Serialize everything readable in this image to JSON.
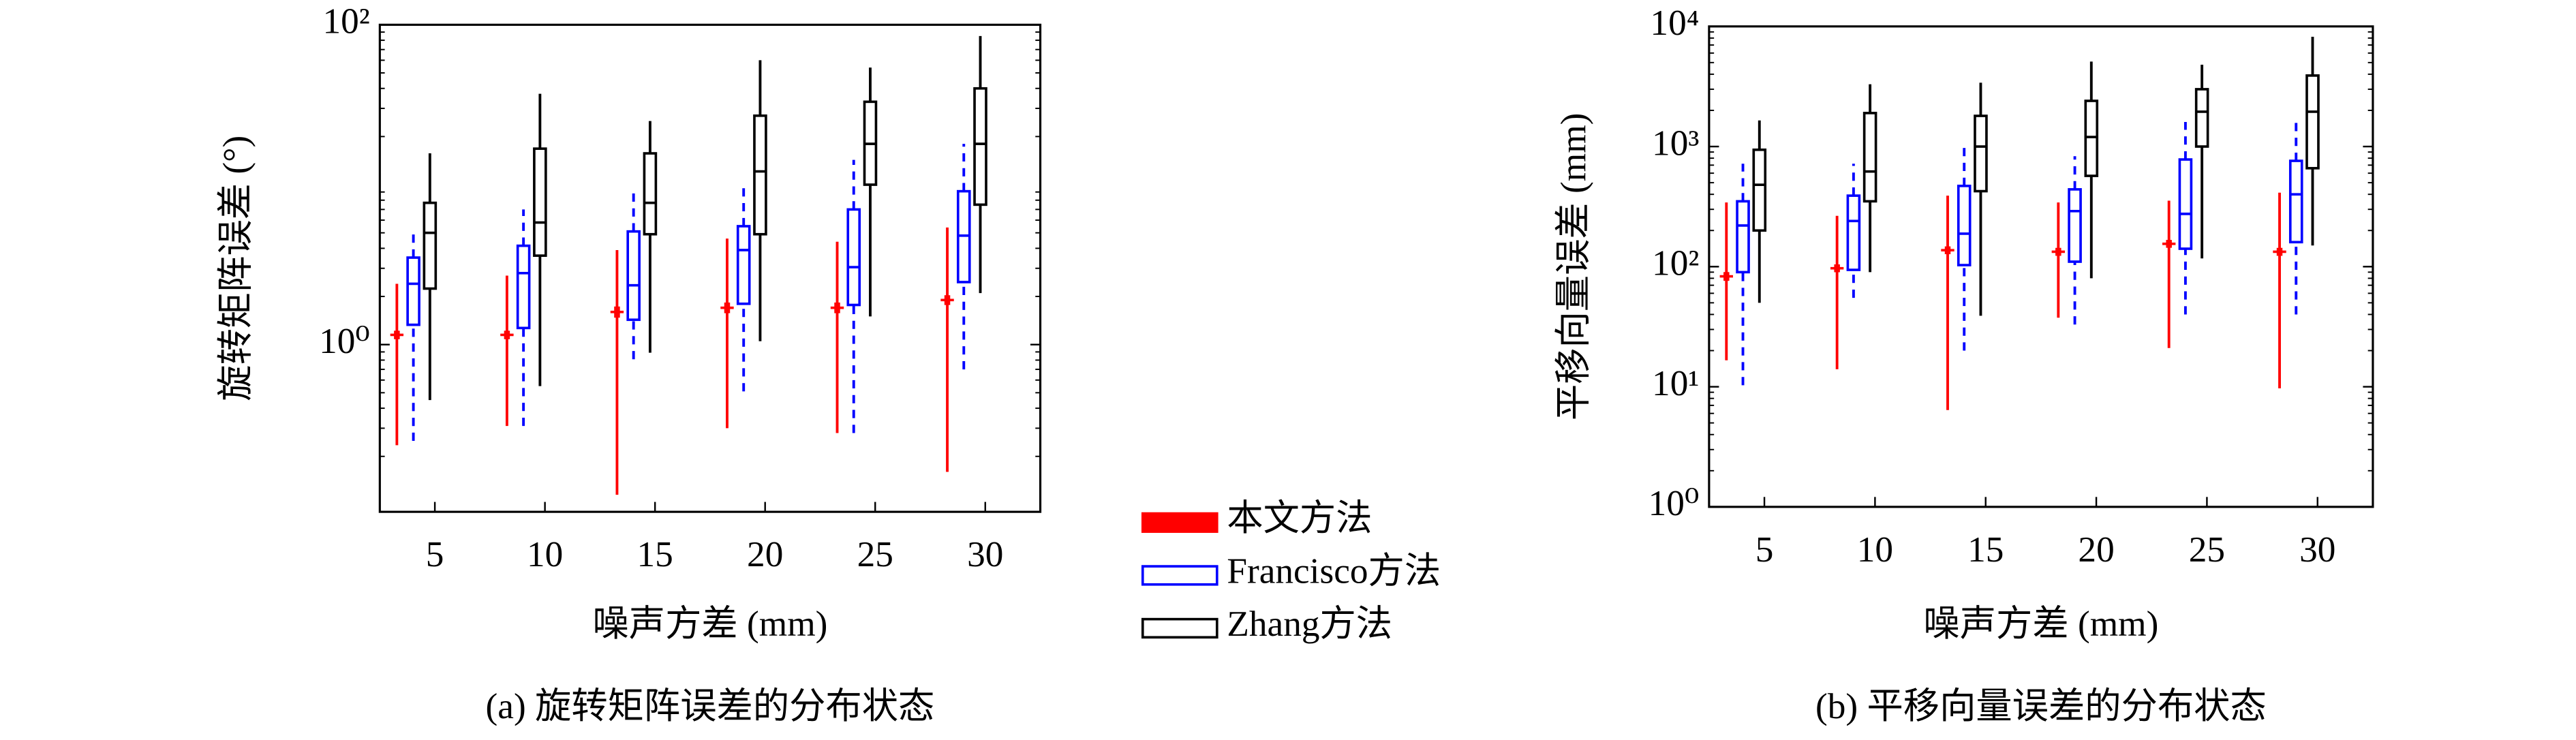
{
  "chart_data": [
    {
      "type": "box",
      "log_y": true,
      "ylabel": "旋转矩阵误差 (°)",
      "xlabel": "噪声方差 (mm)",
      "caption": "(a) 旋转矩阵误差的分布状态",
      "categories": [
        "5",
        "10",
        "15",
        "20",
        "25",
        "30"
      ],
      "ylim": [
        0.09,
        100
      ],
      "yticks": [
        {
          "value": 1,
          "label": "10⁰"
        },
        {
          "value": 100,
          "label": "10²"
        }
      ],
      "legend": "outside-right",
      "series": [
        {
          "name": "本文方法",
          "color": "#ff0000",
          "filled": true,
          "values": [
            {
              "low": 0.235,
              "q1": 1.1,
              "median": 1.15,
              "q3": 1.2,
              "high": 2.4
            },
            {
              "low": 0.31,
              "q1": 1.1,
              "median": 1.15,
              "q3": 1.2,
              "high": 2.7
            },
            {
              "low": 0.115,
              "q1": 1.5,
              "median": 1.6,
              "q3": 1.7,
              "high": 3.9
            },
            {
              "low": 0.3,
              "q1": 1.6,
              "median": 1.7,
              "q3": 1.8,
              "high": 4.6
            },
            {
              "low": 0.28,
              "q1": 1.6,
              "median": 1.7,
              "q3": 1.8,
              "high": 4.4
            },
            {
              "low": 0.16,
              "q1": 1.8,
              "median": 1.9,
              "q3": 2.0,
              "high": 5.4
            }
          ]
        },
        {
          "name": "Francisco方法",
          "color": "#0000ff",
          "filled": false,
          "dashed": true,
          "values": [
            {
              "low": 0.25,
              "q1": 1.33,
              "median": 2.4,
              "q3": 3.5,
              "high": 5.1
            },
            {
              "low": 0.31,
              "q1": 1.27,
              "median": 2.8,
              "q3": 4.15,
              "high": 7.0
            },
            {
              "low": 0.81,
              "q1": 1.43,
              "median": 2.35,
              "q3": 5.1,
              "high": 9.1
            },
            {
              "low": 0.51,
              "q1": 1.8,
              "median": 3.9,
              "q3": 5.5,
              "high": 10.2
            },
            {
              "low": 0.28,
              "q1": 1.77,
              "median": 3.05,
              "q3": 7.0,
              "high": 14.3
            },
            {
              "low": 0.7,
              "q1": 2.46,
              "median": 4.8,
              "q3": 9.1,
              "high": 18
            }
          ]
        },
        {
          "name": "Zhang方法",
          "color": "#000000",
          "filled": false,
          "values": [
            {
              "low": 0.45,
              "q1": 2.24,
              "median": 5.0,
              "q3": 7.7,
              "high": 15.7
            },
            {
              "low": 0.55,
              "q1": 3.6,
              "median": 5.8,
              "q3": 16.8,
              "high": 37
            },
            {
              "low": 0.89,
              "q1": 4.9,
              "median": 7.7,
              "q3": 15.7,
              "high": 25
            },
            {
              "low": 1.05,
              "q1": 4.9,
              "median": 12.1,
              "q3": 27,
              "high": 60
            },
            {
              "low": 1.5,
              "q1": 10,
              "median": 18,
              "q3": 33,
              "high": 54
            },
            {
              "low": 2.1,
              "q1": 7.5,
              "median": 18,
              "q3": 40,
              "high": 85
            }
          ]
        }
      ]
    },
    {
      "type": "box",
      "log_y": true,
      "ylabel": "平移向量误差 (mm)",
      "xlabel": "噪声方差 (mm)",
      "caption": "(b) 平移向量误差的分布状态",
      "categories": [
        "5",
        "10",
        "15",
        "20",
        "25",
        "30"
      ],
      "ylim": [
        1,
        10000
      ],
      "yticks": [
        {
          "value": 1,
          "label": "10⁰"
        },
        {
          "value": 10,
          "label": "10¹"
        },
        {
          "value": 100,
          "label": "10²"
        },
        {
          "value": 1000,
          "label": "10³"
        },
        {
          "value": 10000,
          "label": "10⁴"
        }
      ],
      "series": [
        {
          "color": "#ff0000",
          "filled": true,
          "values": [
            {
              "low": 16.6,
              "q1": 78,
              "median": 83,
              "q3": 88,
              "high": 342
            },
            {
              "low": 14,
              "q1": 92,
              "median": 97,
              "q3": 102,
              "high": 265
            },
            {
              "low": 6.4,
              "q1": 130,
              "median": 137,
              "q3": 144,
              "high": 390
            },
            {
              "low": 37.6,
              "q1": 126,
              "median": 133,
              "q3": 140,
              "high": 342
            },
            {
              "low": 21,
              "q1": 147,
              "median": 155,
              "q3": 163,
              "high": 354
            },
            {
              "low": 9.7,
              "q1": 126,
              "median": 133,
              "q3": 140,
              "high": 413
            }
          ]
        },
        {
          "color": "#0000ff",
          "filled": false,
          "dashed": true,
          "values": [
            {
              "low": 10.3,
              "q1": 90,
              "median": 220,
              "q3": 350,
              "high": 720
            },
            {
              "low": 55,
              "q1": 94,
              "median": 240,
              "q3": 390,
              "high": 720
            },
            {
              "low": 20,
              "q1": 103,
              "median": 188,
              "q3": 470,
              "high": 1000
            },
            {
              "low": 33,
              "q1": 110,
              "median": 290,
              "q3": 440,
              "high": 830
            },
            {
              "low": 40,
              "q1": 141,
              "median": 275,
              "q3": 780,
              "high": 1600
            },
            {
              "low": 40,
              "q1": 160,
              "median": 400,
              "q3": 760,
              "high": 1600
            }
          ]
        },
        {
          "color": "#000000",
          "filled": false,
          "values": [
            {
              "low": 50,
              "q1": 200,
              "median": 480,
              "q3": 940,
              "high": 1650
            },
            {
              "low": 90,
              "q1": 350,
              "median": 620,
              "q3": 1900,
              "high": 3300
            },
            {
              "low": 39,
              "q1": 425,
              "median": 1000,
              "q3": 1800,
              "high": 3400
            },
            {
              "low": 80,
              "q1": 570,
              "median": 1200,
              "q3": 2400,
              "high": 5100
            },
            {
              "low": 117,
              "q1": 1000,
              "median": 1950,
              "q3": 3000,
              "high": 4800
            },
            {
              "low": 150,
              "q1": 660,
              "median": 1950,
              "q3": 3900,
              "high": 8200
            }
          ]
        }
      ]
    }
  ]
}
